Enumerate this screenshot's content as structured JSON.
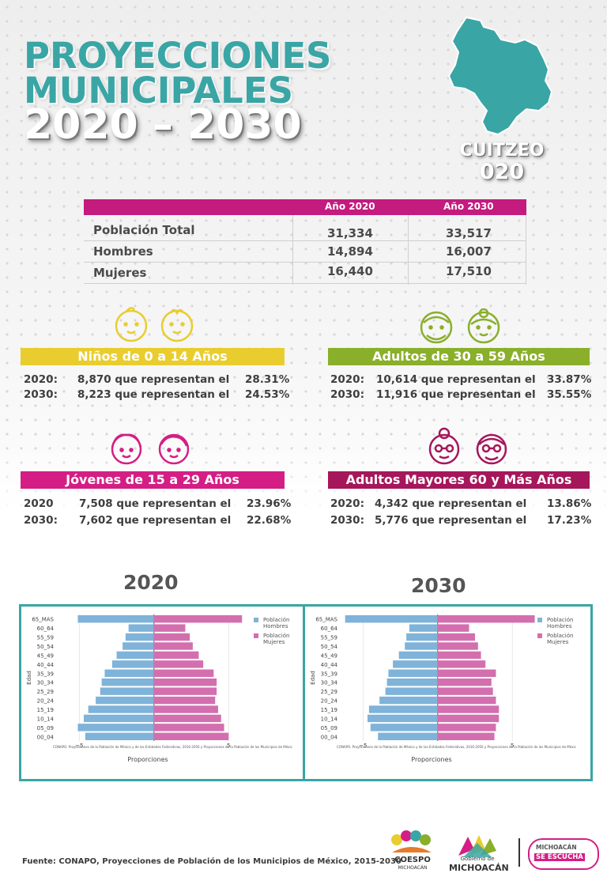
{
  "header": {
    "line1": "PROYECCIONES",
    "line2": "MUNICIPALES",
    "line3": "2020 – 2030"
  },
  "municipio": {
    "name": "CUITZEO",
    "code": "020"
  },
  "table": {
    "col1": "Año 2020",
    "col2": "Año 2030",
    "rows": [
      {
        "label": "Población Total",
        "v2020": "31,334",
        "v2030": "33,517"
      },
      {
        "label": "Hombres",
        "v2020": "14,894",
        "v2030": "16,007"
      },
      {
        "label": "Mujeres",
        "v2020": "16,440",
        "v2030": "17,510"
      }
    ]
  },
  "groups": {
    "ninos": {
      "title": "Niños de 0 a 14 Años",
      "color": "#e9cd2f",
      "rows": [
        {
          "year": "2020:",
          "text": "8,870 que representan el",
          "pct": "28.31%"
        },
        {
          "year": "2030:",
          "text": "8,223 que representan el",
          "pct": "24.53%"
        }
      ]
    },
    "adultos": {
      "title": "Adultos de 30 a 59 Años",
      "color": "#8aaf2b",
      "rows": [
        {
          "year": "2020:",
          "text": "10,614 que representan el",
          "pct": "33.87%"
        },
        {
          "year": "2030:",
          "text": "11,916 que representan el",
          "pct": "35.55%"
        }
      ]
    },
    "jovenes": {
      "title": "Jóvenes de 15 a 29 Años",
      "color": "#d41e85",
      "rows": [
        {
          "year": "2020",
          "text": "7,508 que representan el",
          "pct": "23.96%"
        },
        {
          "year": "2030:",
          "text": "7,602 que representan el",
          "pct": "22.68%"
        }
      ]
    },
    "mayores": {
      "title": "Adultos Mayores  60 y Más Años",
      "color": "#a6165a",
      "rows": [
        {
          "year": "2020:",
          "text": "4,342 que representan el",
          "pct": "13.86%"
        },
        {
          "year": "2030:",
          "text": "5,776 que representan el",
          "pct": "17.23%"
        }
      ]
    }
  },
  "chart_data": [
    {
      "type": "bar",
      "title": "2020",
      "xlabel": "Proporciones",
      "ylabel": "Edad",
      "note": "CONAPO. Proyecciones de la Población de México y de las Entidades Federativas, 2016-2050 y Proyecciones de la Población de los Municipios de Méxic",
      "categories": [
        "00_04",
        "05_09",
        "10_14",
        "15_19",
        "20_24",
        "25_29",
        "30_34",
        "35_39",
        "40_44",
        "45_49",
        "50_54",
        "55_59",
        "60_64",
        "65_MAS"
      ],
      "xlim": [
        -6.5,
        7
      ],
      "xticks": [
        "−5",
        "5"
      ],
      "series": [
        {
          "name": "Población Hombres",
          "color": "#7fb3d9",
          "values": [
            -4.6,
            -5.1,
            -4.7,
            -4.4,
            -3.9,
            -3.6,
            -3.5,
            -3.3,
            -2.8,
            -2.5,
            -2.1,
            -1.9,
            -1.7,
            -5.1
          ]
        },
        {
          "name": "Población Mujeres",
          "color": "#d36fae",
          "values": [
            5.0,
            4.7,
            4.5,
            4.3,
            4.1,
            4.2,
            4.2,
            4.0,
            3.3,
            3.0,
            2.6,
            2.4,
            2.1,
            5.9
          ]
        }
      ],
      "legend": "top-right"
    },
    {
      "type": "bar",
      "title": "2030",
      "xlabel": "Proporciones",
      "ylabel": "Edad",
      "note": "CONAPO. Proyecciones de la Población de México y de las Entidades Federativas, 2016-2050 y Proyecciones de la Población de los Municipios de Méxic",
      "categories": [
        "00_04",
        "05_09",
        "10_14",
        "15_19",
        "20_24",
        "25_29",
        "30_34",
        "35_39",
        "40_44",
        "45_49",
        "50_54",
        "55_59",
        "60_64",
        "65_MAS"
      ],
      "xlim": [
        -6.5,
        7
      ],
      "xticks": [
        "−5",
        "5"
      ],
      "series": [
        {
          "name": "Población Hombres",
          "color": "#7fb3d9",
          "values": [
            -4.0,
            -4.5,
            -4.7,
            -4.6,
            -3.9,
            -3.5,
            -3.4,
            -3.3,
            -3.0,
            -2.6,
            -2.2,
            -2.1,
            -1.9,
            -6.2
          ]
        },
        {
          "name": "Población Mujeres",
          "color": "#d36fae",
          "values": [
            3.8,
            3.9,
            4.1,
            4.1,
            3.9,
            3.7,
            3.6,
            3.9,
            3.2,
            2.9,
            2.7,
            2.5,
            2.1,
            6.5
          ]
        }
      ],
      "legend": "top-right"
    }
  ],
  "footer": {
    "source": "Fuente: CONAPO, Proyecciones de Población de los Municipios de México, 2015-2030"
  },
  "logos": {
    "coespo_line1": "COESPO",
    "coespo_line2": "MICHOACÁN",
    "gob_line1": "Gobierno de",
    "gob_line2": "MICHOACÁN",
    "mse_line1": "MICHOACÁN",
    "mse_line2": "SE ESCUCHA"
  }
}
